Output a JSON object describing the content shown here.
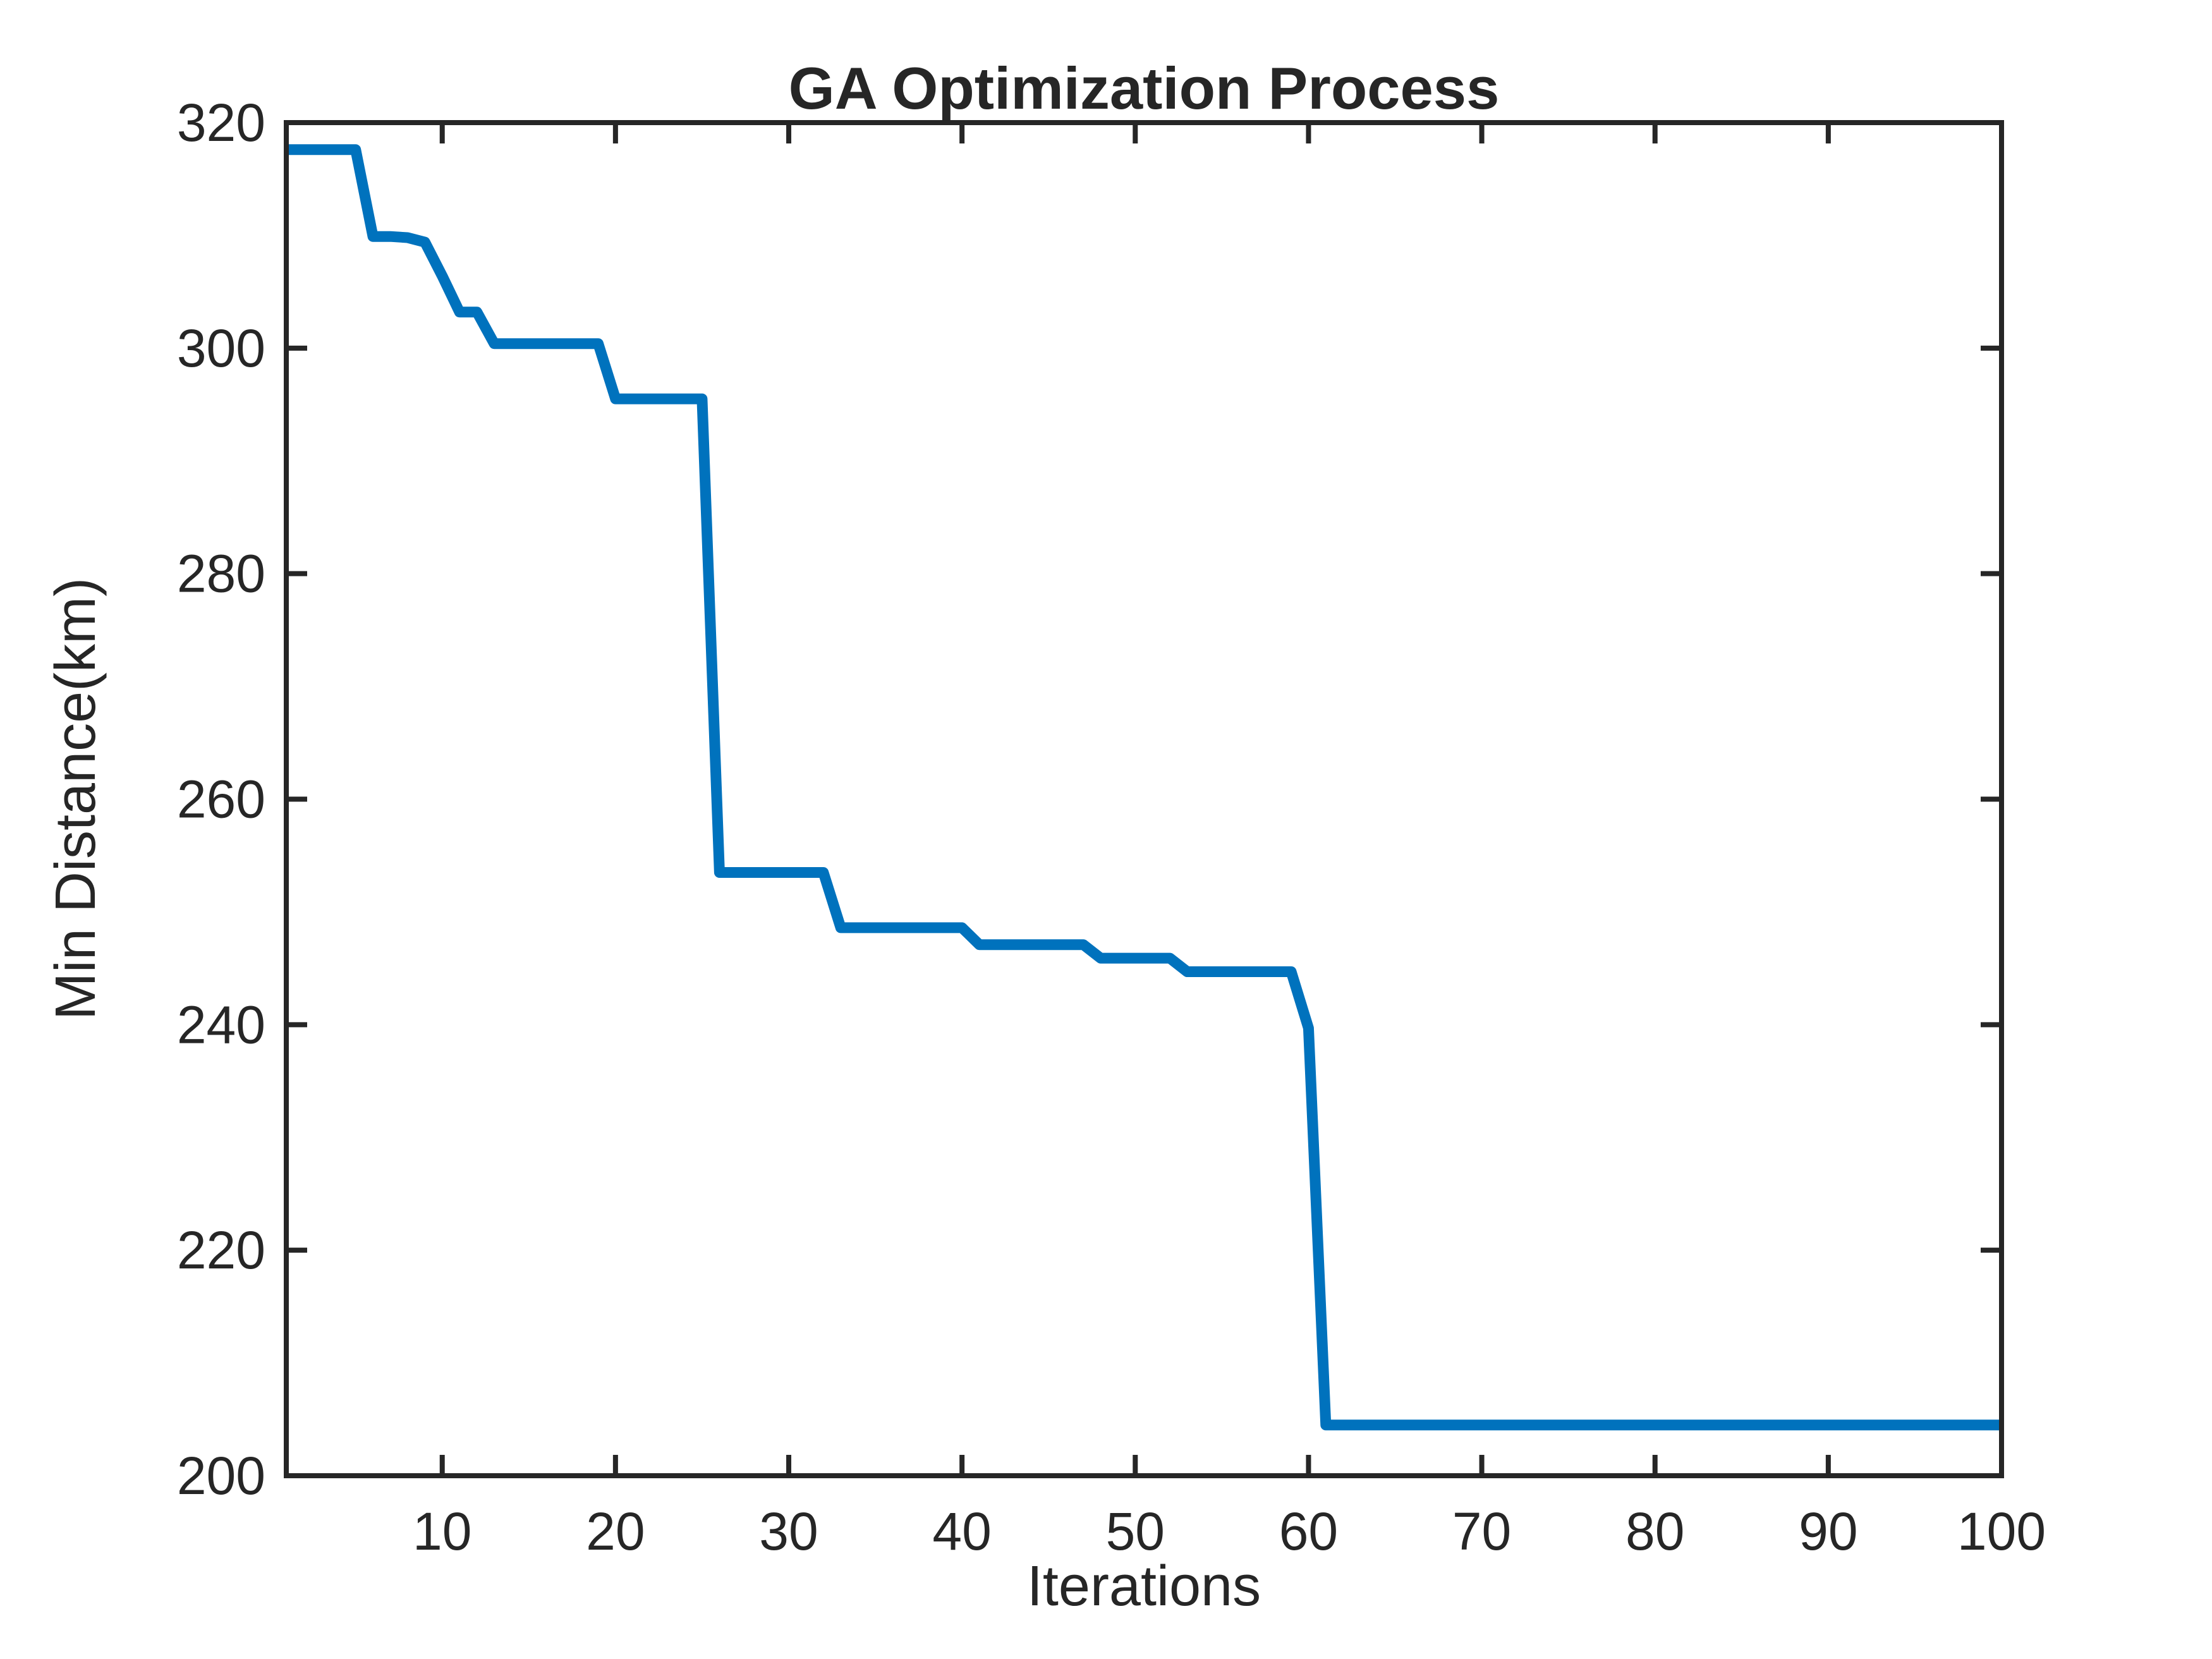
{
  "figure": {
    "background": "#ffffff"
  },
  "chart_data": {
    "type": "line",
    "title": "GA Optimization Process",
    "xlabel": "Iterations",
    "ylabel": "Min Distance(km)",
    "xlim": [
      1,
      100
    ],
    "ylim": [
      200,
      320
    ],
    "xticks": [
      10,
      20,
      30,
      40,
      50,
      60,
      70,
      80,
      90,
      100
    ],
    "yticks": [
      200,
      220,
      240,
      260,
      280,
      300,
      320
    ],
    "grid": false,
    "box": true,
    "line_color": "#0072BD",
    "line_width": 17,
    "axes_color": "#262626",
    "x": [
      1,
      2,
      3,
      4,
      5,
      6,
      7,
      8,
      9,
      10,
      11,
      12,
      13,
      14,
      15,
      16,
      17,
      18,
      19,
      20,
      21,
      22,
      23,
      24,
      25,
      26,
      27,
      28,
      29,
      30,
      31,
      32,
      33,
      34,
      35,
      36,
      37,
      38,
      39,
      40,
      41,
      42,
      43,
      44,
      45,
      46,
      47,
      48,
      49,
      50,
      51,
      52,
      53,
      54,
      55,
      56,
      57,
      58,
      59,
      60,
      61,
      62,
      63,
      64,
      65,
      66,
      67,
      68,
      69,
      70,
      71,
      72,
      73,
      74,
      75,
      76,
      77,
      78,
      79,
      80,
      81,
      82,
      83,
      84,
      85,
      86,
      87,
      88,
      89,
      90,
      91,
      92,
      93,
      94,
      95,
      96,
      97,
      98,
      99,
      100
    ],
    "values": [
      317.6,
      317.6,
      317.6,
      317.6,
      317.6,
      309.9,
      309.9,
      309.8,
      309.4,
      306.4,
      303.2,
      303.2,
      300.4,
      300.4,
      300.4,
      300.4,
      300.4,
      300.4,
      300.4,
      295.5,
      295.5,
      295.5,
      295.5,
      295.5,
      295.5,
      253.5,
      253.5,
      253.5,
      253.5,
      253.5,
      253.5,
      253.5,
      248.6,
      248.6,
      248.6,
      248.6,
      248.6,
      248.6,
      248.6,
      248.6,
      247.1,
      247.1,
      247.1,
      247.1,
      247.1,
      247.1,
      247.1,
      245.9,
      245.9,
      245.9,
      245.9,
      245.9,
      244.7,
      244.7,
      244.7,
      244.7,
      244.7,
      244.7,
      244.7,
      239.7,
      204.5,
      204.5,
      204.5,
      204.5,
      204.5,
      204.5,
      204.5,
      204.5,
      204.5,
      204.5,
      204.5,
      204.5,
      204.5,
      204.5,
      204.5,
      204.5,
      204.5,
      204.5,
      204.5,
      204.5,
      204.5,
      204.5,
      204.5,
      204.5,
      204.5,
      204.5,
      204.5,
      204.5,
      204.5,
      204.5,
      204.5,
      204.5,
      204.5,
      204.5,
      204.5,
      204.5,
      204.5,
      204.5,
      204.5,
      204.5
    ]
  }
}
